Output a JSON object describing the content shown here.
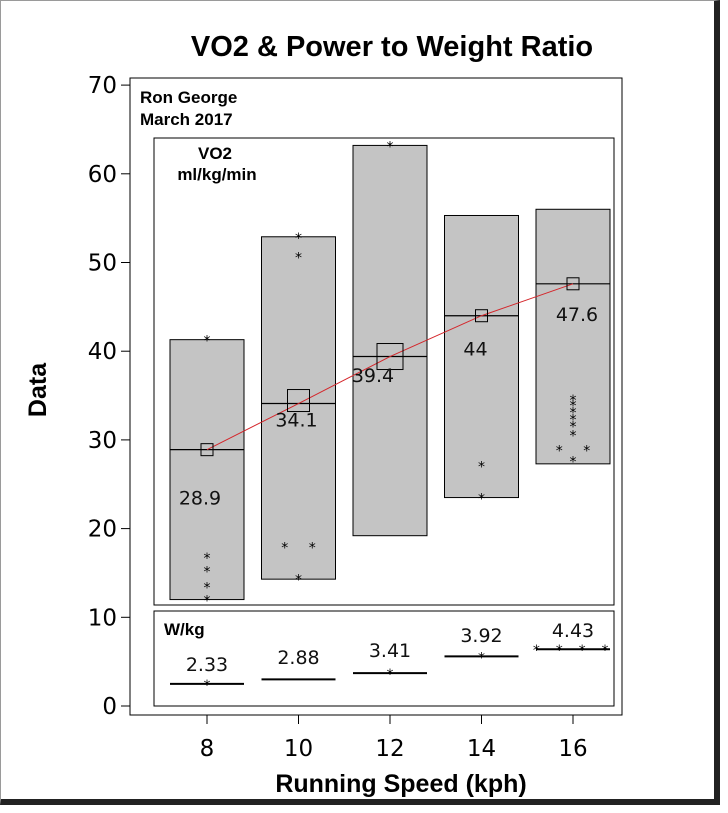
{
  "chart_data": {
    "type": "boxplot",
    "title": "VO2 & Power to Weight Ratio",
    "xlabel": "Running Speed (kph)",
    "ylabel": "Data",
    "ylim": [
      0,
      70
    ],
    "yticks": [
      0,
      10,
      20,
      30,
      40,
      50,
      60,
      70
    ],
    "categories": [
      8,
      10,
      12,
      14,
      16
    ],
    "annotation_lines": [
      "Ron George",
      "March 2017"
    ],
    "vo2": {
      "label_lines": [
        "VO2",
        "ml/kg/min"
      ],
      "boxes": [
        {
          "x": 8,
          "low": 12,
          "high": 41.3,
          "median": 28.9
        },
        {
          "x": 10,
          "low": 14.3,
          "high": 52.9,
          "median": 34.1
        },
        {
          "x": 12,
          "low": 19.2,
          "high": 63.2,
          "median": 39.4
        },
        {
          "x": 14,
          "low": 23.5,
          "high": 55.3,
          "median": 44.0
        },
        {
          "x": 16,
          "low": 27.3,
          "high": 56.0,
          "median": 47.6
        }
      ],
      "mean_labels": [
        "28.9",
        "34.1",
        "39.4",
        "44",
        "47.6"
      ],
      "points": [
        [
          8,
          41.3
        ],
        [
          8,
          16.8
        ],
        [
          8,
          15.3
        ],
        [
          8,
          13.5
        ],
        [
          8,
          12.0
        ],
        [
          9.7,
          18.0
        ],
        [
          10.3,
          18.0
        ],
        [
          10,
          14.4
        ],
        [
          10,
          52.9
        ],
        [
          10,
          50.7
        ],
        [
          12,
          63.2
        ],
        [
          14,
          27.1
        ],
        [
          14,
          23.5
        ],
        [
          16,
          34.6
        ],
        [
          16,
          34.0
        ],
        [
          16,
          33.2
        ],
        [
          16,
          32.4
        ],
        [
          16,
          31.6
        ],
        [
          16,
          30.6
        ],
        [
          15.7,
          28.9
        ],
        [
          16.3,
          28.9
        ],
        [
          16,
          27.7
        ]
      ]
    },
    "wkg": {
      "label": "W/kg",
      "values": [
        2.33,
        2.88,
        3.41,
        3.92,
        4.43
      ],
      "value_labels": [
        "2.33",
        "2.88",
        "3.41",
        "3.92",
        "4.43"
      ],
      "line_y": [
        2.5,
        3.0,
        3.7,
        5.6,
        6.4
      ],
      "points": [
        [
          8,
          2.5
        ],
        [
          12,
          3.7
        ],
        [
          14,
          5.6
        ],
        [
          15.2,
          6.4
        ],
        [
          15.7,
          6.4
        ],
        [
          16.2,
          6.4
        ],
        [
          16.7,
          6.4
        ]
      ]
    }
  }
}
